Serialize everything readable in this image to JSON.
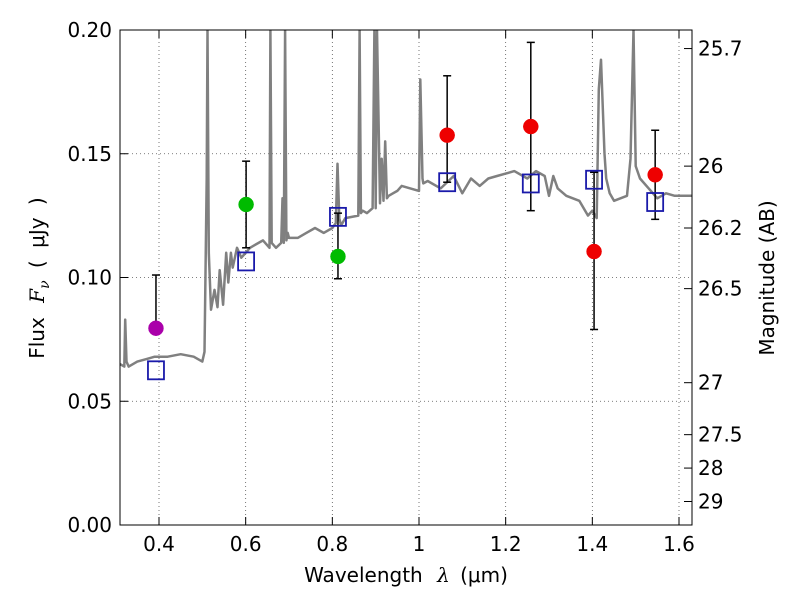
{
  "chart_data": {
    "type": "scatter",
    "xlabel": {
      "prefix": "Wavelength",
      "symbol": "λ",
      "units": "(μm)"
    },
    "ylabel": {
      "prefix": "Flux",
      "symbol": "F",
      "subscript": "ν",
      "units": "μJy"
    },
    "ylabel_right": "Magnitude (AB)",
    "xlim": [
      0.31,
      1.63
    ],
    "ylim": [
      0.0,
      0.2
    ],
    "x_ticks": [
      0.4,
      0.6,
      0.8,
      1.0,
      1.2,
      1.4,
      1.6
    ],
    "x_tick_labels": [
      "0.4",
      "0.6",
      "0.8",
      "1",
      "1.2",
      "1.4",
      "1.6"
    ],
    "y_ticks": [
      0.0,
      0.05,
      0.1,
      0.15,
      0.2
    ],
    "y_tick_labels": [
      "0.00",
      "0.05",
      "0.10",
      "0.15",
      "0.20"
    ],
    "mag_ticks": [
      {
        "value": 0.1925,
        "label": "25.7"
      },
      {
        "value": 0.145,
        "label": "26"
      },
      {
        "value": 0.12,
        "label": "26.2"
      },
      {
        "value": 0.0955,
        "label": "26.5"
      },
      {
        "value": 0.0575,
        "label": "27"
      },
      {
        "value": 0.0365,
        "label": "27.5"
      },
      {
        "value": 0.023,
        "label": "28"
      },
      {
        "value": 0.0095,
        "label": "29"
      }
    ],
    "grid": true,
    "colors": {
      "spectrum": "#808080",
      "purple": "#aa00aa",
      "green": "#00bb00",
      "red": "#ee0000",
      "model_box": "#1a1aaa",
      "errorbar": "#000000"
    },
    "observed": [
      {
        "x": 0.393,
        "y": 0.0795,
        "yerr_lo": 0.0795,
        "yerr_hi": 0.101,
        "color": "purple"
      },
      {
        "x": 0.601,
        "y": 0.1295,
        "yerr_lo": 0.112,
        "yerr_hi": 0.147,
        "color": "green"
      },
      {
        "x": 0.813,
        "y": 0.1085,
        "yerr_lo": 0.0995,
        "yerr_hi": 0.126,
        "color": "green"
      },
      {
        "x": 1.065,
        "y": 0.1575,
        "yerr_lo": 0.1385,
        "yerr_hi": 0.1815,
        "color": "red"
      },
      {
        "x": 1.258,
        "y": 0.161,
        "yerr_lo": 0.127,
        "yerr_hi": 0.195,
        "color": "red"
      },
      {
        "x": 1.404,
        "y": 0.1105,
        "yerr_lo": 0.079,
        "yerr_hi": 0.1425,
        "color": "red"
      },
      {
        "x": 1.545,
        "y": 0.1415,
        "yerr_lo": 0.1235,
        "yerr_hi": 0.1595,
        "color": "red"
      }
    ],
    "model": [
      {
        "x": 0.393,
        "y": 0.0625
      },
      {
        "x": 0.601,
        "y": 0.1065
      },
      {
        "x": 0.813,
        "y": 0.1245
      },
      {
        "x": 1.065,
        "y": 0.1385
      },
      {
        "x": 1.258,
        "y": 0.138
      },
      {
        "x": 1.404,
        "y": 0.1395
      },
      {
        "x": 1.545,
        "y": 0.1305
      }
    ],
    "spectrum": {
      "x": [
        0.31,
        0.32,
        0.322,
        0.325,
        0.33,
        0.35,
        0.37,
        0.39,
        0.42,
        0.45,
        0.48,
        0.5,
        0.505,
        0.51,
        0.512,
        0.515,
        0.52,
        0.528,
        0.535,
        0.54,
        0.548,
        0.555,
        0.56,
        0.566,
        0.57,
        0.58,
        0.59,
        0.6,
        0.61,
        0.62,
        0.64,
        0.655,
        0.657,
        0.66,
        0.67,
        0.682,
        0.685,
        0.688,
        0.691,
        0.694,
        0.697,
        0.7,
        0.72,
        0.74,
        0.76,
        0.78,
        0.8,
        0.808,
        0.812,
        0.816,
        0.82,
        0.83,
        0.86,
        0.863,
        0.866,
        0.87,
        0.88,
        0.893,
        0.897,
        0.9,
        0.903,
        0.91,
        0.914,
        0.918,
        0.922,
        0.926,
        0.93,
        0.94,
        0.95,
        0.96,
        1.0,
        1.003,
        1.008,
        1.01,
        1.02,
        1.05,
        1.08,
        1.1,
        1.12,
        1.14,
        1.16,
        1.18,
        1.2,
        1.22,
        1.25,
        1.27,
        1.29,
        1.3,
        1.31,
        1.32,
        1.34,
        1.37,
        1.39,
        1.4,
        1.41,
        1.415,
        1.42,
        1.428,
        1.432,
        1.44,
        1.45,
        1.48,
        1.488,
        1.495,
        1.5,
        1.51,
        1.53,
        1.55,
        1.57,
        1.59,
        1.61,
        1.63
      ],
      "y": [
        0.065,
        0.064,
        0.083,
        0.066,
        0.064,
        0.066,
        0.067,
        0.068,
        0.068,
        0.069,
        0.068,
        0.066,
        0.07,
        0.14,
        0.2,
        0.11,
        0.087,
        0.095,
        0.088,
        0.103,
        0.089,
        0.11,
        0.098,
        0.11,
        0.104,
        0.112,
        0.108,
        0.11,
        0.112,
        0.113,
        0.115,
        0.112,
        0.2,
        0.114,
        0.112,
        0.114,
        0.132,
        0.114,
        0.2,
        0.115,
        0.118,
        0.116,
        0.116,
        0.118,
        0.12,
        0.118,
        0.12,
        0.122,
        0.146,
        0.124,
        0.121,
        0.124,
        0.125,
        0.2,
        0.126,
        0.127,
        0.126,
        0.128,
        0.2,
        0.128,
        0.2,
        0.13,
        0.148,
        0.131,
        0.155,
        0.132,
        0.133,
        0.134,
        0.135,
        0.137,
        0.135,
        0.18,
        0.14,
        0.138,
        0.139,
        0.136,
        0.141,
        0.134,
        0.14,
        0.137,
        0.14,
        0.141,
        0.142,
        0.143,
        0.14,
        0.143,
        0.141,
        0.133,
        0.141,
        0.136,
        0.133,
        0.131,
        0.125,
        0.127,
        0.124,
        0.176,
        0.188,
        0.15,
        0.14,
        0.134,
        0.131,
        0.133,
        0.148,
        0.2,
        0.145,
        0.14,
        0.136,
        0.132,
        0.134,
        0.133,
        0.133,
        0.133
      ]
    }
  }
}
